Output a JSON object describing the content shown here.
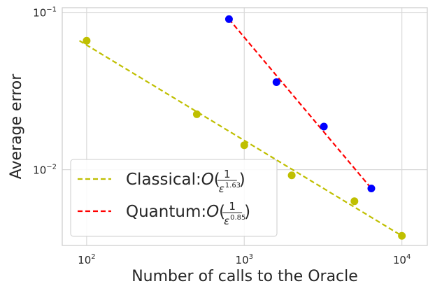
{
  "chart_data": {
    "type": "scatter",
    "xlabel": "Number of calls to the Oracle",
    "ylabel": "Average error",
    "xscale": "log",
    "yscale": "log",
    "xlim": [
      70,
      14500
    ],
    "ylim": [
      0.0033,
      0.107
    ],
    "grid": true,
    "legend_position": "lower-left",
    "x_ticks": [
      {
        "value": 100,
        "base": "10",
        "exp": "2"
      },
      {
        "value": 1000,
        "base": "10",
        "exp": "3"
      },
      {
        "value": 10000,
        "base": "10",
        "exp": "4"
      }
    ],
    "y_ticks": [
      {
        "value": 0.01,
        "base": "10",
        "exp": "−2"
      },
      {
        "value": 0.1,
        "base": "10",
        "exp": "−1"
      }
    ],
    "series": [
      {
        "name": "Classical",
        "legend_prefix": "Classical:",
        "legend_exponent": "1.63",
        "line_color": "#bfbf00",
        "point_color": "#bfbf00",
        "points": [
          {
            "x": 100,
            "y": 0.066
          },
          {
            "x": 500,
            "y": 0.0225
          },
          {
            "x": 1000,
            "y": 0.0143
          },
          {
            "x": 2000,
            "y": 0.0092
          },
          {
            "x": 5000,
            "y": 0.0063
          },
          {
            "x": 10000,
            "y": 0.0038
          }
        ],
        "fit": [
          {
            "x": 90,
            "y": 0.066
          },
          {
            "x": 10000,
            "y": 0.0038
          }
        ]
      },
      {
        "name": "Quantum",
        "legend_prefix": "Quantum:",
        "legend_exponent": "0.85",
        "line_color": "#ff0000",
        "point_color": "#0000ff",
        "points": [
          {
            "x": 800,
            "y": 0.0905
          },
          {
            "x": 1600,
            "y": 0.036
          },
          {
            "x": 3200,
            "y": 0.0188
          },
          {
            "x": 6400,
            "y": 0.0076
          }
        ],
        "fit": [
          {
            "x": 800,
            "y": 0.0905
          },
          {
            "x": 6400,
            "y": 0.0076
          }
        ]
      }
    ]
  }
}
